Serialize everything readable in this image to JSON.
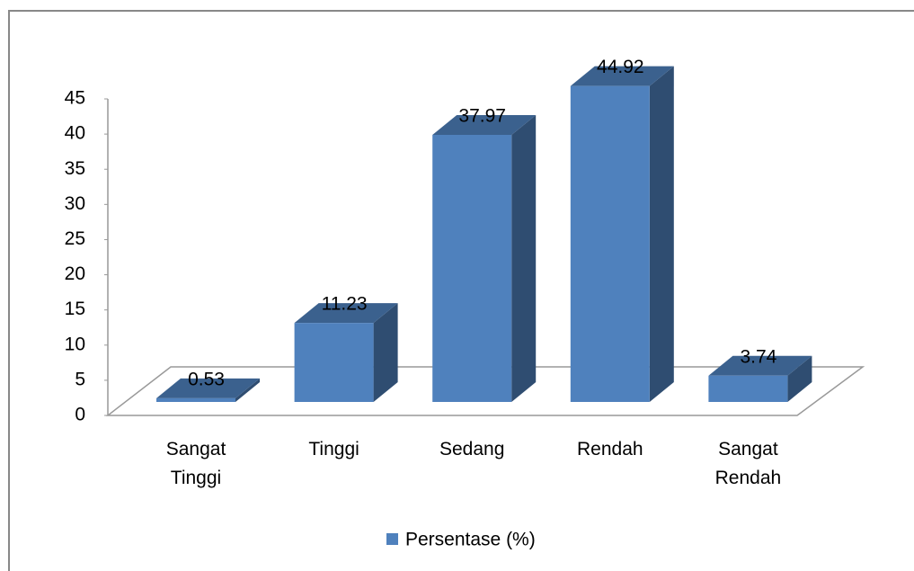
{
  "chart_data": {
    "type": "bar3d",
    "categories": [
      "Sangat Tinggi",
      "Tinggi",
      "Sedang",
      "Rendah",
      "Sangat Rendah"
    ],
    "series": [
      {
        "name": "Persentase (%)",
        "color": "#4f81bd",
        "values": [
          0.53,
          11.23,
          37.97,
          44.92,
          3.74
        ]
      }
    ],
    "ylim": [
      0,
      45
    ],
    "yticks": [
      0,
      5,
      10,
      15,
      20,
      25,
      30,
      35,
      40,
      45
    ],
    "legend": "bottom"
  }
}
